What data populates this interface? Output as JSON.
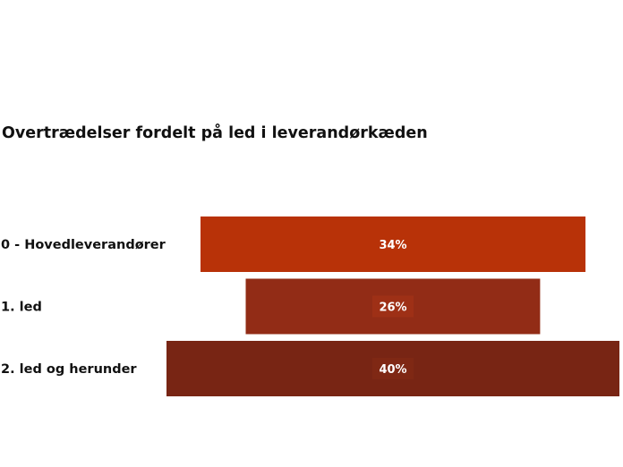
{
  "chart_data": {
    "type": "bar",
    "subtype": "funnel",
    "title": "Overtrædelser fordelt på led i leverandørkæden",
    "categories": [
      "0 - Hovedleverandører",
      "1. led",
      "2. led og herunder"
    ],
    "values": [
      34,
      26,
      40
    ],
    "value_labels": [
      "34%",
      "26%",
      "40%"
    ],
    "unit": "%",
    "colors": [
      "#B83208",
      "#922C16",
      "#782514"
    ],
    "label_box_colors": [
      "#B83208",
      "#9E3016",
      "#7F2814"
    ],
    "grid": false,
    "legend": "none"
  }
}
